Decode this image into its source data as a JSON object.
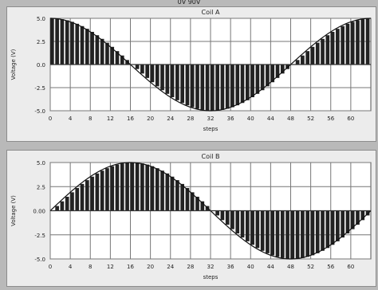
{
  "page": {
    "top_text": "0V    90V"
  },
  "chart_data": [
    {
      "type": "bar",
      "title": "Coil A",
      "xlabel": "steps",
      "ylabel": "Voltage (V)",
      "xlim": [
        0,
        64
      ],
      "ylim": [
        -5.0,
        5.0
      ],
      "xticks": [
        0,
        4,
        8,
        12,
        16,
        20,
        24,
        28,
        32,
        36,
        40,
        44,
        48,
        52,
        56,
        60
      ],
      "yticks": [
        5.0,
        2.5,
        0.0,
        -2.5,
        -5.0
      ],
      "ytick_labels": [
        "5.0",
        "2.5",
        "0.0",
        "-2.5",
        "-5.0"
      ],
      "grid": true,
      "amplitude": 5.0,
      "phase_deg": 90,
      "period_steps": 64,
      "bar_color": "#222222"
    },
    {
      "type": "bar",
      "title": "Coil B",
      "xlabel": "steps",
      "ylabel": "Voltage (V)",
      "xlim": [
        0,
        64
      ],
      "ylim": [
        -5.0,
        5.0
      ],
      "xticks": [
        0,
        4,
        8,
        12,
        16,
        20,
        24,
        28,
        32,
        36,
        40,
        44,
        48,
        52,
        56,
        60
      ],
      "yticks": [
        5.0,
        2.5,
        0.0,
        -2.5,
        -5.0
      ],
      "ytick_labels": [
        "5.0",
        "2.5",
        "0.00",
        "-2.5",
        "-5.0"
      ],
      "grid": true,
      "amplitude": 5.0,
      "phase_deg": 0,
      "period_steps": 64,
      "bar_color": "#222222"
    }
  ]
}
